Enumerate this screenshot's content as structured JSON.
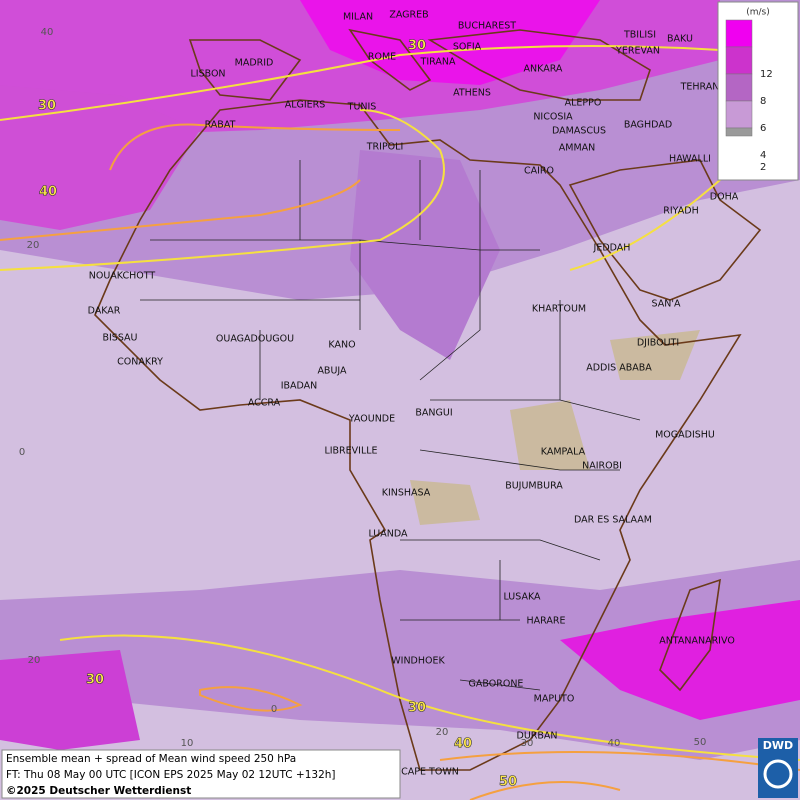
{
  "cities": [
    "MILAN",
    "ZAGREB",
    "BUCHAREST",
    "TBILISI",
    "BAKU",
    "YEREVAN",
    "MADRID",
    "ROME",
    "SOFIA",
    "TIRANA",
    "ANKARA",
    "LISBON",
    "TEHRAN",
    "ALGIERS",
    "TUNIS",
    "ATHENS",
    "ALEPPO",
    "NICOSIA",
    "BAGHDAD",
    "RABAT",
    "TRIPOLI",
    "DAMASCUS",
    "AMMAN",
    "HAWALLI",
    "CAIRO",
    "DOHA",
    "RIYADH",
    "JEDDAH",
    "NOUAKCHOTT",
    "SAN'A",
    "KHARTOUM",
    "DAKAR",
    "BISSAU",
    "OUAGADOUGOU",
    "KANO",
    "DJIBOUTI",
    "CONAKRY",
    "ABUJA",
    "ADDIS ABABA",
    "IBADAN",
    "ACCRA",
    "BANGUI",
    "YAOUNDE",
    "MOGADISHU",
    "LIBREVILLE",
    "KAMPALA",
    "NAIROBI",
    "KINSHASA",
    "BUJUMBURA",
    "DAR ES SALAAM",
    "LUANDA",
    "LUSAKA",
    "ANTANANARIVO",
    "HARARE",
    "WINDHOEK",
    "GABORONE",
    "MAPUTO",
    "DURBAN",
    "CAPE TOWN"
  ],
  "contour_labels": [
    30,
    30,
    40,
    30,
    30,
    40,
    50
  ],
  "grid_labels": [
    40,
    20,
    0,
    20,
    0,
    10,
    20,
    30,
    40,
    50
  ],
  "legend": {
    "unit": "(m/s)",
    "levels": [
      12,
      8,
      6,
      4,
      2
    ],
    "colors": [
      "#f000f0",
      "#cc33cc",
      "#b466c4",
      "#c89ad6",
      "#9a9a9a"
    ]
  },
  "footer": {
    "line1": "Ensemble mean + spread of Mean wind speed 250 hPa",
    "line2": "FT: Thu 08 May 00 UTC [ICON EPS 2025 May 02 12UTC +132h]",
    "line3": "©2025 Deutscher Wetterdienst"
  },
  "logo": "DWD"
}
